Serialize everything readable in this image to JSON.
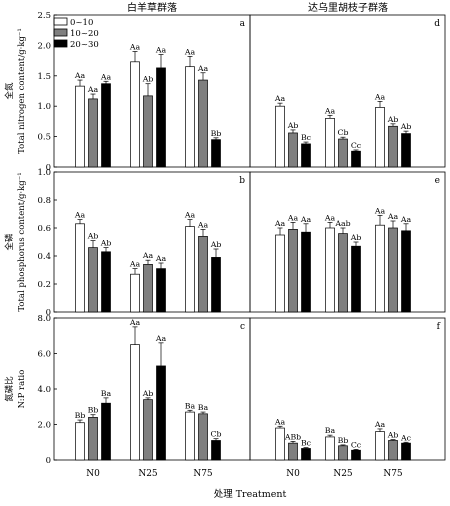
{
  "figure": {
    "col_titles": [
      "白羊草群落",
      "达乌里胡枝子群落"
    ],
    "xlabel": "处理 Treatment",
    "legend": [
      "0~10",
      "10~20",
      "20~30"
    ],
    "series_colors": [
      "#ffffff",
      "#7f7f7f",
      "#000000"
    ]
  },
  "chart_data": [
    {
      "type": "bar",
      "panel": "a",
      "community": "白羊草群落",
      "ylabel_cn": "全氮",
      "ylabel_en": "Total nitrogen content/g·kg⁻¹",
      "ylim": [
        0,
        2.5
      ],
      "yticks": [
        "0",
        "0.5",
        "1.0",
        "1.5",
        "2.0",
        "2.5"
      ],
      "categories": [
        "N0",
        "N25",
        "N75"
      ],
      "series": [
        {
          "name": "0~10",
          "values": [
            1.33,
            1.73,
            1.65
          ],
          "errors": [
            0.1,
            0.17,
            0.17
          ],
          "labels": [
            "Aa",
            "Aa",
            "Aa"
          ]
        },
        {
          "name": "10~20",
          "values": [
            1.12,
            1.17,
            1.43
          ],
          "errors": [
            0.08,
            0.2,
            0.12
          ],
          "labels": [
            "Aa",
            "Ab",
            "Aa"
          ]
        },
        {
          "name": "20~30",
          "values": [
            1.37,
            1.63,
            0.45
          ],
          "errors": [
            0.04,
            0.22,
            0.03
          ],
          "labels": [
            "Aa",
            "Aa",
            "Bb"
          ]
        }
      ]
    },
    {
      "type": "bar",
      "panel": "d",
      "community": "达乌里胡枝子群落",
      "ylim": [
        0,
        2.5
      ],
      "categories": [
        "N0",
        "N25",
        "N75"
      ],
      "series": [
        {
          "name": "0~10",
          "values": [
            1.0,
            0.8,
            0.98
          ],
          "errors": [
            0.05,
            0.05,
            0.1
          ],
          "labels": [
            "Aa",
            "Aa",
            "Aa"
          ]
        },
        {
          "name": "10~20",
          "values": [
            0.56,
            0.46,
            0.67
          ],
          "errors": [
            0.05,
            0.03,
            0.04
          ],
          "labels": [
            "Ab",
            "Cb",
            "Ab"
          ]
        },
        {
          "name": "20~30",
          "values": [
            0.38,
            0.26,
            0.55
          ],
          "errors": [
            0.03,
            0.02,
            0.04
          ],
          "labels": [
            "Bc",
            "Cc",
            "Ab"
          ]
        }
      ]
    },
    {
      "type": "bar",
      "panel": "b",
      "community": "白羊草群落",
      "ylabel_cn": "全磷",
      "ylabel_en": "Total phosphorus content/g·kg⁻¹",
      "ylim": [
        0,
        1.0
      ],
      "yticks": [
        "0",
        "0.2",
        "0.4",
        "0.6",
        "0.8",
        "1.0"
      ],
      "categories": [
        "N0",
        "N25",
        "N75"
      ],
      "series": [
        {
          "name": "0~10",
          "values": [
            0.63,
            0.27,
            0.61
          ],
          "errors": [
            0.03,
            0.04,
            0.05
          ],
          "labels": [
            "Aa",
            "Aa",
            "Aa"
          ]
        },
        {
          "name": "10~20",
          "values": [
            0.46,
            0.34,
            0.54
          ],
          "errors": [
            0.05,
            0.03,
            0.05
          ],
          "labels": [
            "Ab",
            "Aa",
            "Aa"
          ]
        },
        {
          "name": "20~30",
          "values": [
            0.43,
            0.31,
            0.39
          ],
          "errors": [
            0.03,
            0.04,
            0.06
          ],
          "labels": [
            "Ab",
            "Aa",
            "Ab"
          ]
        }
      ]
    },
    {
      "type": "bar",
      "panel": "e",
      "community": "达乌里胡枝子群落",
      "ylim": [
        0,
        1.0
      ],
      "categories": [
        "N0",
        "N25",
        "N75"
      ],
      "series": [
        {
          "name": "0~10",
          "values": [
            0.55,
            0.6,
            0.62
          ],
          "errors": [
            0.05,
            0.04,
            0.07
          ],
          "labels": [
            "Aa",
            "Aa",
            "Aa"
          ]
        },
        {
          "name": "10~20",
          "values": [
            0.59,
            0.56,
            0.6
          ],
          "errors": [
            0.05,
            0.04,
            0.05
          ],
          "labels": [
            "Aa",
            "Aab",
            "Aa"
          ]
        },
        {
          "name": "20~30",
          "values": [
            0.57,
            0.47,
            0.58
          ],
          "errors": [
            0.06,
            0.03,
            0.05
          ],
          "labels": [
            "Aa",
            "Ab",
            "Aa"
          ]
        }
      ]
    },
    {
      "type": "bar",
      "panel": "c",
      "community": "白羊草群落",
      "ylabel_cn": "氮磷比",
      "ylabel_en": "N:P ratio",
      "ylim": [
        0,
        8.0
      ],
      "yticks": [
        "0",
        "2.0",
        "4.0",
        "6.0",
        "8.0"
      ],
      "categories": [
        "N0",
        "N25",
        "N75"
      ],
      "series": [
        {
          "name": "0~10",
          "values": [
            2.1,
            6.5,
            2.7
          ],
          "errors": [
            0.15,
            1.0,
            0.1
          ],
          "labels": [
            "Bb",
            "Aa",
            "Ba"
          ]
        },
        {
          "name": "10~20",
          "values": [
            2.4,
            3.4,
            2.6
          ],
          "errors": [
            0.15,
            0.1,
            0.1
          ],
          "labels": [
            "Bb",
            "Ab",
            "Ba"
          ]
        },
        {
          "name": "20~30",
          "values": [
            3.2,
            5.3,
            1.1
          ],
          "errors": [
            0.3,
            1.3,
            0.1
          ],
          "labels": [
            "Ba",
            "Aa",
            "Cb"
          ]
        }
      ]
    },
    {
      "type": "bar",
      "panel": "f",
      "community": "达乌里胡枝子群落",
      "ylim": [
        0,
        8.0
      ],
      "categories": [
        "N0",
        "N25",
        "N75"
      ],
      "series": [
        {
          "name": "0~10",
          "values": [
            1.8,
            1.3,
            1.6
          ],
          "errors": [
            0.1,
            0.1,
            0.15
          ],
          "labels": [
            "Aa",
            "Ba",
            "Aa"
          ]
        },
        {
          "name": "10~20",
          "values": [
            0.95,
            0.8,
            1.1
          ],
          "errors": [
            0.1,
            0.05,
            0.05
          ],
          "labels": [
            "ABb",
            "Bb",
            "Ab"
          ]
        },
        {
          "name": "20~30",
          "values": [
            0.65,
            0.55,
            0.95
          ],
          "errors": [
            0.05,
            0.05,
            0.05
          ],
          "labels": [
            "Bc",
            "Cc",
            "Ac"
          ]
        }
      ]
    }
  ]
}
